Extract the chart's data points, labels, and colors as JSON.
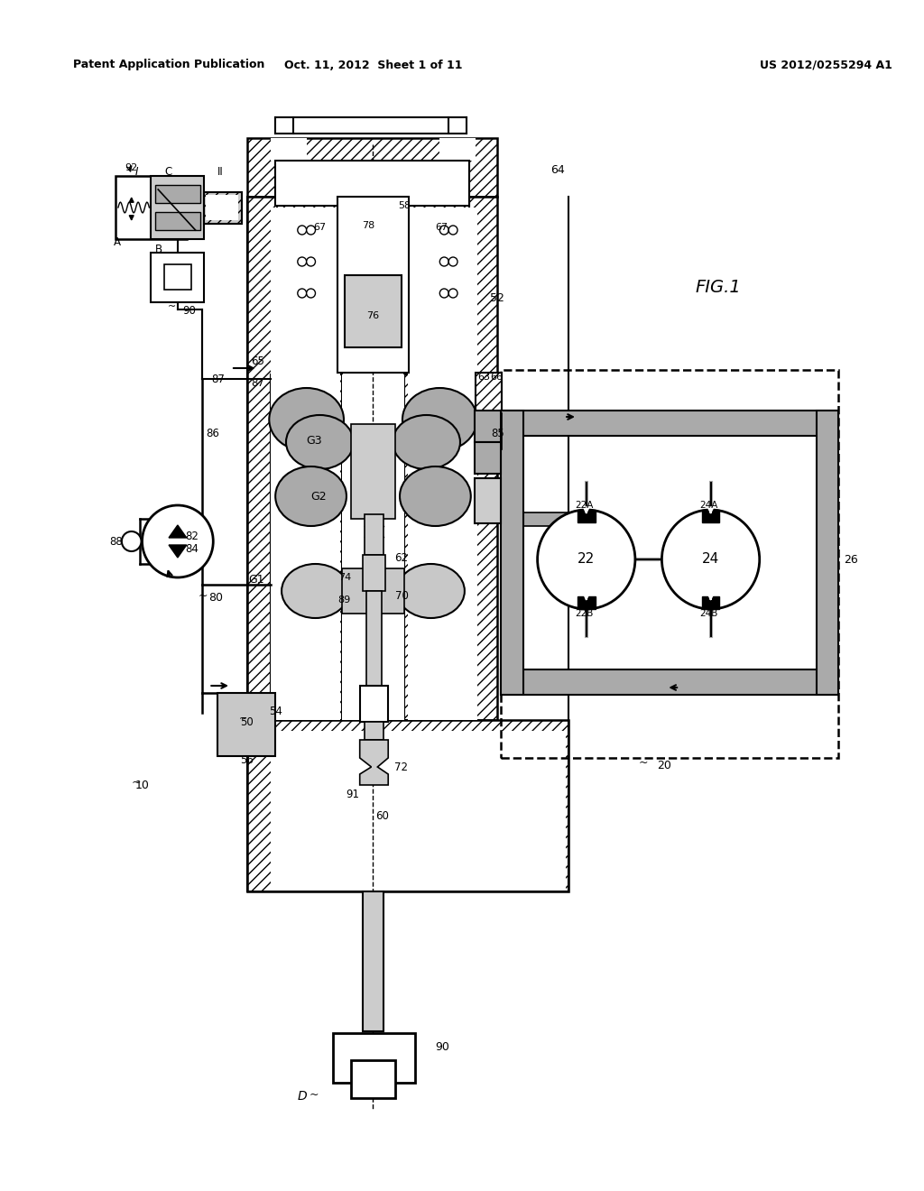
{
  "bg_color": "#ffffff",
  "header_left": "Patent Application Publication",
  "header_mid": "Oct. 11, 2012  Sheet 1 of 11",
  "header_right": "US 2012/0255294 A1",
  "fig_label": "FIG.1",
  "line_color": "#000000",
  "gray_med": "#aaaaaa",
  "gray_light": "#cccccc",
  "gray_dark": "#555555",
  "gray_dot": "#c8c8c8"
}
